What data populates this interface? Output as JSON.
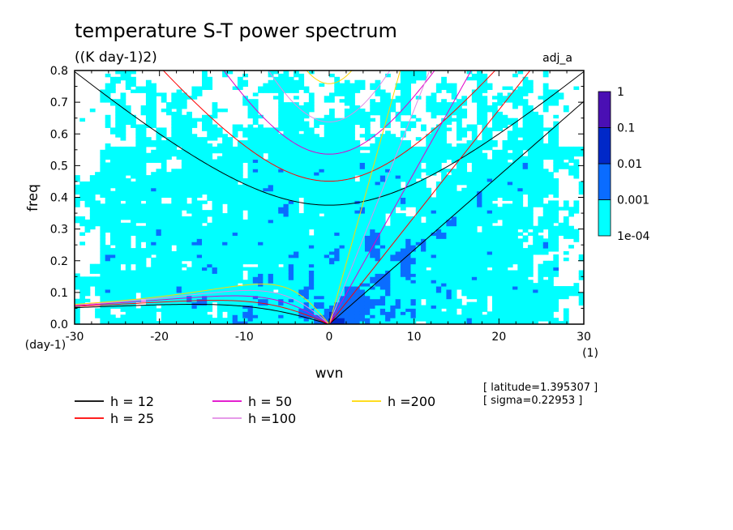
{
  "chart_data": {
    "type": "heatmap",
    "title": "temperature S-T power spectrum",
    "subtitle": "((K day-1)2)",
    "label_right": "adj_a",
    "xlabel": "wvn",
    "ylabel": "freq",
    "x_unit": "(1)",
    "y_unit": "(day-1)",
    "xlim": [
      -30,
      30
    ],
    "ylim": [
      0,
      0.8
    ],
    "x_ticks": [
      "-30",
      "-20",
      "-10",
      "0",
      "10",
      "20",
      "30"
    ],
    "x_tick_values": [
      -30,
      -20,
      -10,
      0,
      10,
      20,
      30
    ],
    "y_ticks": [
      "0.0",
      "0.1",
      "0.2",
      "0.3",
      "0.4",
      "0.5",
      "0.6",
      "0.7",
      "0.8"
    ],
    "y_tick_values": [
      0,
      0.1,
      0.2,
      0.3,
      0.4,
      0.5,
      0.6,
      0.7,
      0.8
    ],
    "colorbar": {
      "scale": "log",
      "levels": [
        "1e-04",
        "0.001",
        "0.01",
        "0.1",
        "1"
      ],
      "colors": [
        "#00ffff",
        "#0a6cff",
        "#0028c8",
        "#4a0fb4"
      ]
    },
    "dispersion_curves": [
      {
        "name": "h = 12",
        "h": 12,
        "color": "#000000"
      },
      {
        "name": "h = 25",
        "h": 25,
        "color": "#ff0000"
      },
      {
        "name": "h = 50",
        "h": 50,
        "color": "#e000c8"
      },
      {
        "name": "h =100",
        "h": 100,
        "color": "#e28ce6"
      },
      {
        "name": "h =200",
        "h": 200,
        "color": "#ffd800"
      }
    ],
    "annotations": [
      "[ latitude=1.395307 ]",
      "[ sigma=0.22953 ]"
    ]
  }
}
